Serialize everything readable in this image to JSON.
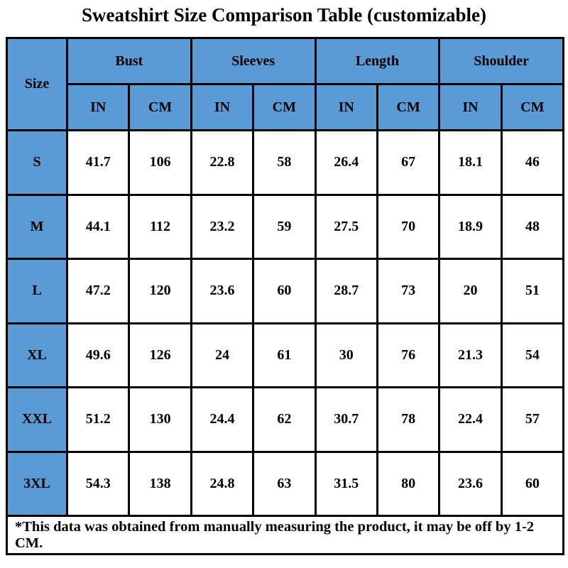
{
  "page": {
    "title": "Sweatshirt Size Comparison Table (customizable)",
    "footnote": "*This data was obtained from manually measuring the product, it may be off by 1-2 CM."
  },
  "colors": {
    "header_blue": "#5b9bd5",
    "border": "#000000",
    "cell_background": "#ffffff",
    "text": "#000000"
  },
  "table": {
    "corner_label": "Size",
    "groups": [
      {
        "label": "Bust",
        "sub": [
          "IN",
          "CM"
        ]
      },
      {
        "label": "Sleeves",
        "sub": [
          "IN",
          "CM"
        ]
      },
      {
        "label": "Length",
        "sub": [
          "IN",
          "CM"
        ]
      },
      {
        "label": "Shoulder",
        "sub": [
          "IN",
          "CM"
        ]
      }
    ],
    "rows": [
      {
        "size": "S",
        "values": [
          "41.7",
          "106",
          "22.8",
          "58",
          "26.4",
          "67",
          "18.1",
          "46"
        ]
      },
      {
        "size": "M",
        "values": [
          "44.1",
          "112",
          "23.2",
          "59",
          "27.5",
          "70",
          "18.9",
          "48"
        ]
      },
      {
        "size": "L",
        "values": [
          "47.2",
          "120",
          "23.6",
          "60",
          "28.7",
          "73",
          "20",
          "51"
        ]
      },
      {
        "size": "XL",
        "values": [
          "49.6",
          "126",
          "24",
          "61",
          "30",
          "76",
          "21.3",
          "54"
        ]
      },
      {
        "size": "XXL",
        "values": [
          "51.2",
          "130",
          "24.4",
          "62",
          "30.7",
          "78",
          "22.4",
          "57"
        ]
      },
      {
        "size": "3XL",
        "values": [
          "54.3",
          "138",
          "24.8",
          "63",
          "31.5",
          "80",
          "23.6",
          "60"
        ]
      }
    ]
  },
  "chart_data": {
    "type": "table",
    "title": "Sweatshirt Size Comparison Table (customizable)",
    "columns": [
      "Size",
      "Bust IN",
      "Bust CM",
      "Sleeves IN",
      "Sleeves CM",
      "Length IN",
      "Length CM",
      "Shoulder IN",
      "Shoulder CM"
    ],
    "rows": [
      [
        "S",
        41.7,
        106,
        22.8,
        58,
        26.4,
        67,
        18.1,
        46
      ],
      [
        "M",
        44.1,
        112,
        23.2,
        59,
        27.5,
        70,
        18.9,
        48
      ],
      [
        "L",
        47.2,
        120,
        23.6,
        60,
        28.7,
        73,
        20,
        51
      ],
      [
        "XL",
        49.6,
        126,
        24,
        61,
        30,
        76,
        21.3,
        54
      ],
      [
        "XXL",
        51.2,
        130,
        24.4,
        62,
        30.7,
        78,
        22.4,
        57
      ],
      [
        "3XL",
        54.3,
        138,
        24.8,
        63,
        31.5,
        80,
        23.6,
        60
      ]
    ],
    "footnote": "*This data was obtained from manually measuring the product, it may be off by 1-2 CM."
  }
}
